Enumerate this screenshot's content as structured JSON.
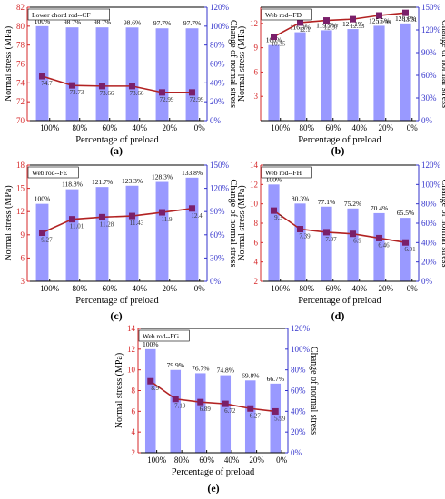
{
  "figure": {
    "colors": {
      "bar": "#9999ff",
      "line": "#b22222",
      "marker": "#7a1f6a",
      "left_axis": "#d62728",
      "right_axis": "#3333cc",
      "axis": "#000000"
    },
    "panel_labels": [
      "(a)",
      "(b)",
      "(c)",
      "(d)",
      "(e)"
    ]
  },
  "chart_data": [
    {
      "type": "bar",
      "legend_title": "Lower chord rod--CF",
      "categories": [
        "100%",
        "80%",
        "60%",
        "40%",
        "20%",
        "0%"
      ],
      "xlabel": "Percentage of preload",
      "ylabel": "Normal stress (MPa)",
      "y2label": "Change of normal stress",
      "ylim": [
        70,
        82
      ],
      "yticks": [
        70,
        72,
        74,
        76,
        78,
        80,
        82
      ],
      "y2lim": [
        0,
        120
      ],
      "y2ticks": [
        "0%",
        "20%",
        "40%",
        "60%",
        "80%",
        "100%",
        "120%"
      ],
      "xtick_labels": [
        "100%",
        "80%",
        "60%",
        "40%",
        "20%",
        "0%"
      ],
      "bar_labels": [
        "100%",
        "98.7%",
        "98.7%",
        "98.6%",
        "97.7%",
        "97.7%"
      ],
      "bar_values": [
        100,
        98.7,
        98.7,
        98.6,
        97.7,
        97.7
      ],
      "line_labels": [
        "74.7",
        "73.73",
        "73.66",
        "73.66",
        "72.99",
        "72.99"
      ],
      "line_values": [
        74.7,
        73.73,
        73.66,
        73.66,
        72.99,
        72.99
      ]
    },
    {
      "type": "bar",
      "legend_title": "Web rod--FD",
      "categories": [
        "100%",
        "80%",
        "60%",
        "40%",
        "20%",
        "0%"
      ],
      "xlabel": "Percentage of preload",
      "ylabel": "Normal stress (MPa)",
      "y2label": "Change of normal stress",
      "ylim": [
        0,
        14
      ],
      "yticks": [
        3,
        6,
        9,
        12
      ],
      "y2lim": [
        0,
        150
      ],
      "y2ticks": [
        "0%",
        "30%",
        "60%",
        "90%",
        "120%",
        "150%"
      ],
      "xtick_labels": [
        "100%",
        "80%",
        "60%",
        "40%",
        "20%",
        "0%"
      ],
      "bar_labels": [
        "100%",
        "116.9%",
        "119.5%",
        "121.1%",
        "125.5%",
        "128.6%"
      ],
      "bar_values": [
        100,
        116.9,
        119.5,
        121.1,
        125.5,
        128.6
      ],
      "line_labels": [
        "10.35",
        "12.1",
        "12.37",
        "12.53",
        "12.99",
        "13.31"
      ],
      "line_values": [
        10.35,
        12.1,
        12.37,
        12.53,
        12.99,
        13.31
      ]
    },
    {
      "type": "bar",
      "legend_title": "Web rod--FE",
      "categories": [
        "100%",
        "80%",
        "60%",
        "40%",
        "20%",
        "0%"
      ],
      "xlabel": "Percentage of preload",
      "ylabel": "Normal stress (MPa)",
      "y2label": "Change of normal stress",
      "ylim": [
        3,
        18
      ],
      "yticks": [
        3,
        6,
        9,
        12,
        15,
        18
      ],
      "y2lim": [
        0,
        150
      ],
      "y2ticks": [
        "0%",
        "30%",
        "60%",
        "90%",
        "120%",
        "150%"
      ],
      "xtick_labels": [
        "100%",
        "80%",
        "60%",
        "40%",
        "20%",
        "0%"
      ],
      "bar_labels": [
        "100%",
        "118.8%",
        "121.7%",
        "123.3%",
        "128.3%",
        "133.8%"
      ],
      "bar_values": [
        100,
        118.8,
        121.7,
        123.3,
        128.3,
        133.8
      ],
      "line_labels": [
        "9.27",
        "11.01",
        "11.28",
        "11.43",
        "11.9",
        "12.4"
      ],
      "line_values": [
        9.27,
        11.01,
        11.28,
        11.43,
        11.9,
        12.4
      ]
    },
    {
      "type": "bar",
      "legend_title": "Web rod--FH",
      "categories": [
        "100%",
        "80%",
        "60%",
        "40%",
        "20%",
        "0%"
      ],
      "xlabel": "Percentage of preload",
      "ylabel": "Normal stress (MPa)",
      "y2label": "Change of normal stress",
      "ylim": [
        2,
        14
      ],
      "yticks": [
        2,
        4,
        6,
        8,
        10,
        12,
        14
      ],
      "y2lim": [
        0,
        120
      ],
      "y2ticks": [
        "0%",
        "20%",
        "40%",
        "60%",
        "80%",
        "100%",
        "120%"
      ],
      "xtick_labels": [
        "100%",
        "80%",
        "60%",
        "40%",
        "20%",
        "0%"
      ],
      "bar_labels": [
        "100%",
        "80.3%",
        "77.1%",
        "75.2%",
        "70.4%",
        "65.5%"
      ],
      "bar_values": [
        100,
        80.3,
        77.1,
        75.2,
        70.4,
        65.5
      ],
      "line_labels": [
        "9.3",
        "7.39",
        "7.07",
        "6.9",
        "6.46",
        "6.01"
      ],
      "line_values": [
        9.3,
        7.39,
        7.07,
        6.9,
        6.46,
        6.01
      ]
    },
    {
      "type": "bar",
      "legend_title": "Web rod--FG",
      "categories": [
        "100%",
        "80%",
        "60%",
        "40%",
        "20%",
        "0%"
      ],
      "xlabel": "Percentage of preload",
      "ylabel": "Normal stress (MPa)",
      "y2label": "Change of normal stress",
      "ylim": [
        2,
        14
      ],
      "yticks": [
        2,
        4,
        6,
        8,
        10,
        12,
        14
      ],
      "y2lim": [
        0,
        120
      ],
      "y2ticks": [
        "0%",
        "20%",
        "40%",
        "60%",
        "80%",
        "100%",
        "120%"
      ],
      "xtick_labels": [
        "100%",
        "80%",
        "60%",
        "40%",
        "20%",
        "0%"
      ],
      "bar_labels": [
        "100%",
        "79.9%",
        "76.7%",
        "74.8%",
        "69.8%",
        "66.7%"
      ],
      "bar_values": [
        100,
        79.9,
        76.7,
        74.8,
        69.8,
        66.7
      ],
      "line_labels": [
        "8.9",
        "7.19",
        "6.89",
        "6.72",
        "6.27",
        "5.99"
      ],
      "line_values": [
        8.9,
        7.19,
        6.89,
        6.72,
        6.27,
        5.99
      ]
    }
  ]
}
